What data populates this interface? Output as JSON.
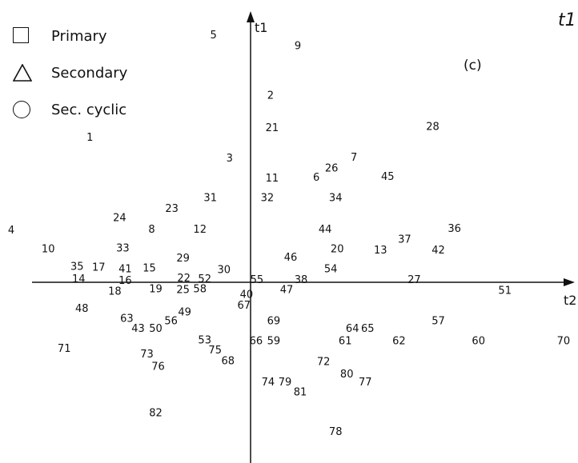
{
  "legend": {
    "items": [
      {
        "label": "Primary",
        "symbol": "square-icon"
      },
      {
        "label": "Secondary",
        "symbol": "triangle-icon"
      },
      {
        "label": "Sec. cyclic",
        "symbol": "circle-icon"
      }
    ]
  },
  "chart_data": {
    "type": "scatter",
    "title": "",
    "panel_label": "(c)",
    "corner_label": "t1",
    "xlabel": "t2",
    "ylabel": "t1",
    "xlim": [
      -310,
      410
    ],
    "ylim": [
      -222,
      338
    ],
    "grid": false,
    "legend_placement": "top-left",
    "points": [
      {
        "label": "1",
        "x": -198,
        "y": 171
      },
      {
        "label": "2",
        "x": 27,
        "y": 222
      },
      {
        "label": "3",
        "x": -24,
        "y": 146
      },
      {
        "label": "4",
        "x": -296,
        "y": 59
      },
      {
        "label": "5",
        "x": -44,
        "y": 295
      },
      {
        "label": "6",
        "x": 84,
        "y": 123
      },
      {
        "label": "7",
        "x": 131,
        "y": 147
      },
      {
        "label": "8",
        "x": -121,
        "y": 60
      },
      {
        "label": "9",
        "x": 61,
        "y": 282
      },
      {
        "label": "10",
        "x": -250,
        "y": 36
      },
      {
        "label": "11",
        "x": 29,
        "y": 122
      },
      {
        "label": "12",
        "x": -61,
        "y": 60
      },
      {
        "label": "13",
        "x": 164,
        "y": 35
      },
      {
        "label": "14",
        "x": -212,
        "y": 0
      },
      {
        "label": "15",
        "x": -124,
        "y": 13
      },
      {
        "label": "16",
        "x": -154,
        "y": -2
      },
      {
        "label": "17",
        "x": -187,
        "y": 14
      },
      {
        "label": "18",
        "x": -167,
        "y": -15
      },
      {
        "label": "19",
        "x": -116,
        "y": -12
      },
      {
        "label": "20",
        "x": 110,
        "y": 36
      },
      {
        "label": "21",
        "x": 29,
        "y": 183
      },
      {
        "label": "22",
        "x": -81,
        "y": 1
      },
      {
        "label": "23",
        "x": -96,
        "y": 85
      },
      {
        "label": "24",
        "x": -161,
        "y": 74
      },
      {
        "label": "25",
        "x": -82,
        "y": -13
      },
      {
        "label": "26",
        "x": 103,
        "y": 134
      },
      {
        "label": "27",
        "x": 206,
        "y": -1
      },
      {
        "label": "28",
        "x": 229,
        "y": 184
      },
      {
        "label": "29",
        "x": -82,
        "y": 25
      },
      {
        "label": "30",
        "x": -31,
        "y": 11
      },
      {
        "label": "31",
        "x": -48,
        "y": 98
      },
      {
        "label": "32",
        "x": 23,
        "y": 98
      },
      {
        "label": "33",
        "x": -157,
        "y": 37
      },
      {
        "label": "34",
        "x": 108,
        "y": 98
      },
      {
        "label": "35",
        "x": -214,
        "y": 15
      },
      {
        "label": "36",
        "x": 256,
        "y": 61
      },
      {
        "label": "37",
        "x": 194,
        "y": 48
      },
      {
        "label": "38",
        "x": 65,
        "y": -1
      },
      {
        "label": "40",
        "x": -3,
        "y": -19
      },
      {
        "label": "41",
        "x": -154,
        "y": 12
      },
      {
        "label": "42",
        "x": 236,
        "y": 35
      },
      {
        "label": "43",
        "x": -138,
        "y": -60
      },
      {
        "label": "44",
        "x": 95,
        "y": 60
      },
      {
        "label": "45",
        "x": 173,
        "y": 124
      },
      {
        "label": "46",
        "x": 52,
        "y": 26
      },
      {
        "label": "47",
        "x": 47,
        "y": -13
      },
      {
        "label": "48",
        "x": -208,
        "y": -36
      },
      {
        "label": "49",
        "x": -80,
        "y": -40
      },
      {
        "label": "50",
        "x": -116,
        "y": -60
      },
      {
        "label": "51",
        "x": 319,
        "y": -14
      },
      {
        "label": "52",
        "x": -55,
        "y": 0
      },
      {
        "label": "53",
        "x": -55,
        "y": -74
      },
      {
        "label": "54",
        "x": 102,
        "y": 12
      },
      {
        "label": "55",
        "x": 10,
        "y": -1
      },
      {
        "label": "56",
        "x": -97,
        "y": -51
      },
      {
        "label": "57",
        "x": 236,
        "y": -51
      },
      {
        "label": "58",
        "x": -61,
        "y": -12
      },
      {
        "label": "59",
        "x": 31,
        "y": -75
      },
      {
        "label": "60",
        "x": 286,
        "y": -75
      },
      {
        "label": "61",
        "x": 120,
        "y": -75
      },
      {
        "label": "62",
        "x": 187,
        "y": -75
      },
      {
        "label": "63",
        "x": -152,
        "y": -48
      },
      {
        "label": "64",
        "x": 129,
        "y": -60
      },
      {
        "label": "65",
        "x": 148,
        "y": -60
      },
      {
        "label": "66",
        "x": 9,
        "y": -75
      },
      {
        "label": "67",
        "x": -6,
        "y": -32
      },
      {
        "label": "68",
        "x": -26,
        "y": -99
      },
      {
        "label": "69",
        "x": 31,
        "y": -51
      },
      {
        "label": "70",
        "x": 392,
        "y": -75
      },
      {
        "label": "71",
        "x": -230,
        "y": -84
      },
      {
        "label": "72",
        "x": 93,
        "y": -100
      },
      {
        "label": "73",
        "x": -127,
        "y": -91
      },
      {
        "label": "74",
        "x": 24,
        "y": -125
      },
      {
        "label": "75",
        "x": -42,
        "y": -86
      },
      {
        "label": "76",
        "x": -113,
        "y": -106
      },
      {
        "label": "77",
        "x": 145,
        "y": -125
      },
      {
        "label": "78",
        "x": 108,
        "y": -185
      },
      {
        "label": "79",
        "x": 45,
        "y": -125
      },
      {
        "label": "80",
        "x": 122,
        "y": -115
      },
      {
        "label": "81",
        "x": 64,
        "y": -137
      },
      {
        "label": "82",
        "x": -116,
        "y": -162
      }
    ]
  }
}
